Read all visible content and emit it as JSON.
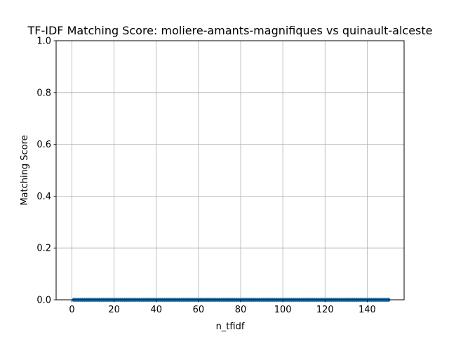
{
  "chart_data": {
    "type": "scatter",
    "title": "TF-IDF Matching Score: moliere-amants-magnifiques vs quinault-alceste",
    "xlabel": "n_tfidf",
    "ylabel": "Matching Score",
    "xlim": [
      -7.5,
      157.5
    ],
    "ylim": [
      0,
      1
    ],
    "xticks": [
      0,
      20,
      40,
      60,
      80,
      100,
      120,
      140
    ],
    "yticks": [
      0.0,
      0.2,
      0.4,
      0.6,
      0.8,
      1.0
    ],
    "xtick_labels": [
      "0",
      "20",
      "40",
      "60",
      "80",
      "100",
      "120",
      "140"
    ],
    "ytick_labels": [
      "0.0",
      "0.2",
      "0.4",
      "0.6",
      "0.8",
      "1.0"
    ],
    "grid": true,
    "series": [
      {
        "color": "#1f77b4",
        "x_range": [
          1,
          150
        ],
        "y_value": 0
      }
    ]
  }
}
